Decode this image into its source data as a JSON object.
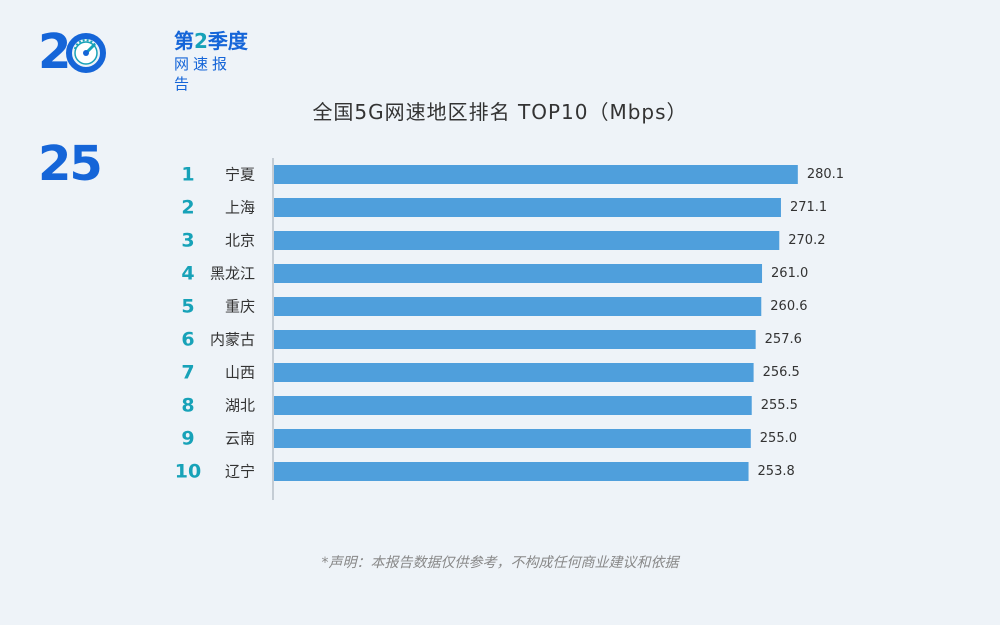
{
  "logo": {
    "year_left": "2",
    "year_right": "25",
    "quarter_prefix": "第",
    "quarter_number": "2",
    "quarter_suffix": "季度",
    "subtitle": "网速报告"
  },
  "colors": {
    "brand": "#1565d8",
    "accent": "#17a2b8",
    "bar": "#4f9fdc",
    "rank": "#17a2b8",
    "background": "#eef3f8"
  },
  "chart_data": {
    "type": "bar",
    "orientation": "horizontal",
    "title": "全国5G网速地区排名 TOP10（Mbps）",
    "ranks": [
      "1",
      "2",
      "3",
      "4",
      "5",
      "6",
      "7",
      "8",
      "9",
      "10"
    ],
    "categories": [
      "宁夏",
      "上海",
      "北京",
      "黑龙江",
      "重庆",
      "内蒙古",
      "山西",
      "湖北",
      "云南",
      "辽宁"
    ],
    "values": [
      280.1,
      271.1,
      270.2,
      261.0,
      260.6,
      257.6,
      256.5,
      255.5,
      255.0,
      253.8
    ],
    "value_labels": [
      "280.1",
      "271.1",
      "270.2",
      "261.0",
      "260.6",
      "257.6",
      "256.5",
      "255.5",
      "255.0",
      "253.8"
    ],
    "xlim": [
      0,
      285
    ],
    "grid": false,
    "legend": "none"
  },
  "footer": {
    "disclaimer": "*声明：本报告数据仅供参考，不构成任何商业建议和依据"
  }
}
